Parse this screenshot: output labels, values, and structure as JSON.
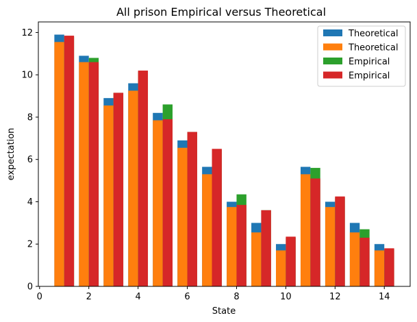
{
  "chart_data": {
    "type": "bar",
    "title": "All prison Empirical versus Theoretical",
    "xlabel": "State",
    "ylabel": "expectation",
    "xlim": [
      -0.05,
      15.05
    ],
    "ylim": [
      0,
      12.5
    ],
    "xticks": [
      "0",
      "2",
      "4",
      "6",
      "8",
      "10",
      "12",
      "14"
    ],
    "yticks": [
      "0",
      "2",
      "4",
      "6",
      "8",
      "10",
      "12"
    ],
    "grid": false,
    "legend_position": "top-right",
    "x": [
      1,
      2,
      3,
      4,
      5,
      6,
      7,
      8,
      9,
      10,
      11,
      12,
      13,
      14
    ],
    "series": [
      {
        "name": "Theoretical",
        "color": "#1f77b4",
        "offset": -0.2,
        "values": [
          11.9,
          10.9,
          8.9,
          9.6,
          8.2,
          6.9,
          5.65,
          4.0,
          3.0,
          2.0,
          5.65,
          4.0,
          3.0,
          2.0
        ]
      },
      {
        "name": "Theoretical",
        "color": "#ff7f0e",
        "offset": -0.2,
        "values": [
          11.55,
          10.6,
          8.55,
          9.25,
          7.85,
          6.55,
          5.3,
          3.75,
          2.55,
          1.7,
          5.3,
          3.75,
          2.55,
          1.7
        ]
      },
      {
        "name": "Empirical",
        "color": "#2ca02c",
        "offset": 0.2,
        "values": [
          11.8,
          10.8,
          9.15,
          10.15,
          8.6,
          7.3,
          6.45,
          4.35,
          3.6,
          2.3,
          5.6,
          4.2,
          2.7,
          1.75
        ]
      },
      {
        "name": "Empirical",
        "color": "#d62728",
        "offset": 0.2,
        "values": [
          11.85,
          10.6,
          9.15,
          10.2,
          7.9,
          7.3,
          6.5,
          3.85,
          3.6,
          2.35,
          5.1,
          4.25,
          2.3,
          1.8
        ]
      }
    ]
  }
}
